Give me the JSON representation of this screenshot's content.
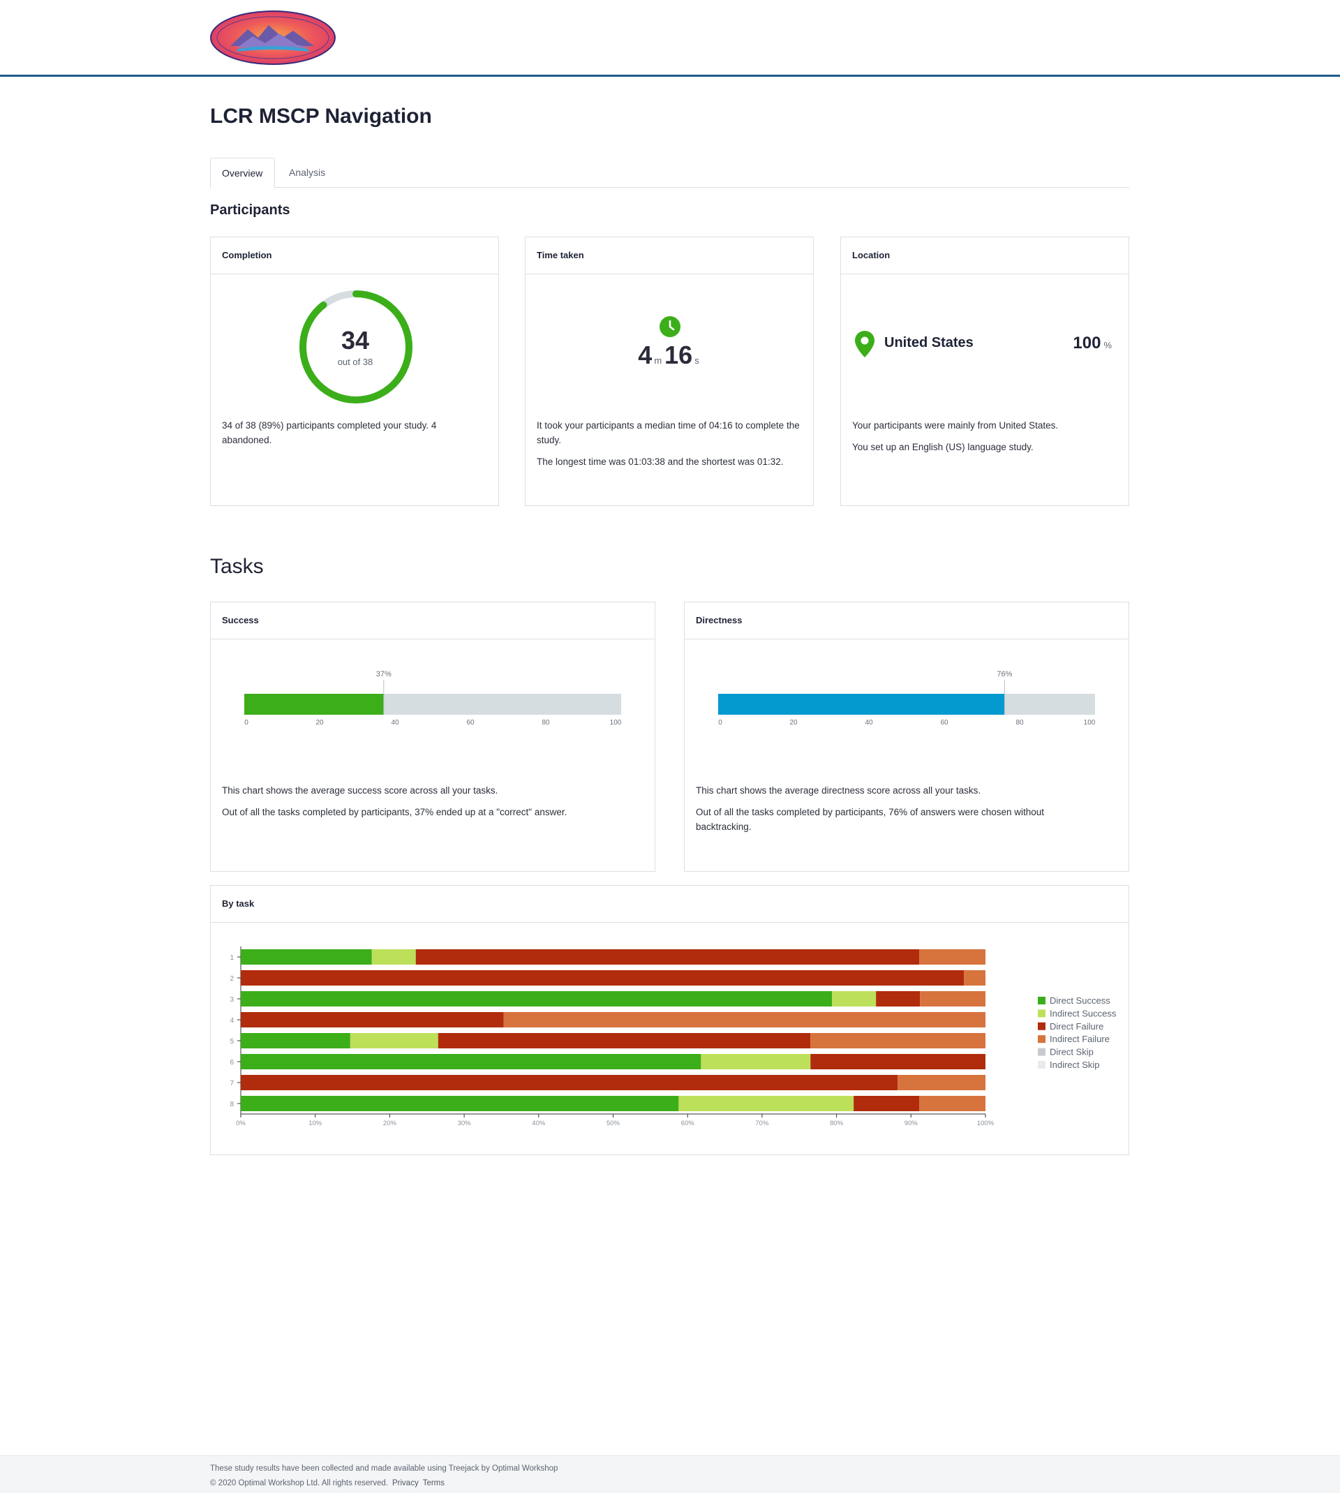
{
  "colors": {
    "accent_blue": "#1f5c8a",
    "success_green": "#3cae1a",
    "indirect_success": "#bde05a",
    "direct_failure": "#b02c0c",
    "indirect_failure": "#d7733d",
    "direct_skip": "#c7cbd0",
    "indirect_skip": "#e8eaec",
    "directness_blue": "#049ad0",
    "track_gray": "#d5dde0"
  },
  "header": {
    "logo_icon": "lcr-mscp-logo-icon"
  },
  "page": {
    "title": "LCR MSCP Navigation"
  },
  "tabs": [
    {
      "label": "Overview",
      "active": true
    },
    {
      "label": "Analysis",
      "active": false
    }
  ],
  "participants": {
    "title": "Participants",
    "completion": {
      "header": "Completion",
      "value": "34",
      "sub": "out of 38",
      "completed": 34,
      "total": 38,
      "text": "34 of 38 (89%) participants completed your study. 4 abandoned."
    },
    "time": {
      "header": "Time taken",
      "minutes": "4",
      "minutes_unit": "m",
      "seconds": "16",
      "seconds_unit": "s",
      "text1": "It took your participants a median time of 04:16 to complete the study.",
      "text2": "The longest time was 01:03:38 and the shortest was 01:32."
    },
    "location": {
      "header": "Location",
      "country": "United States",
      "percent": "100",
      "percent_unit": "%",
      "text1": "Your participants were mainly from United States.",
      "text2": "You set up an English (US) language study."
    }
  },
  "tasks": {
    "title": "Tasks",
    "success": {
      "header": "Success",
      "value": 37,
      "label": "37%",
      "ticks": [
        "0",
        "20",
        "40",
        "60",
        "80",
        "100"
      ],
      "text1": "This chart shows the average success score across all your tasks.",
      "text2": "Out of all the tasks completed by participants, 37% ended up at a \"correct\" answer."
    },
    "directness": {
      "header": "Directness",
      "value": 76,
      "label": "76%",
      "ticks": [
        "0",
        "20",
        "40",
        "60",
        "80",
        "100"
      ],
      "text1": "This chart shows the average directness score across all your tasks.",
      "text2": "Out of all the tasks completed by participants, 76% of answers were chosen without backtracking."
    },
    "by_task_header": "By task"
  },
  "chart_data": {
    "type": "bar",
    "orientation": "horizontal",
    "stacked": true,
    "categories": [
      "1",
      "2",
      "3",
      "4",
      "5",
      "6",
      "7",
      "8"
    ],
    "x_ticks": [
      "0%",
      "10%",
      "20%",
      "30%",
      "40%",
      "50%",
      "60%",
      "70%",
      "80%",
      "90%",
      "100%"
    ],
    "xlim": [
      0,
      100
    ],
    "legend_position": "right",
    "series": [
      {
        "name": "Direct Success",
        "color": "#3cae1a",
        "values": [
          17.6,
          0,
          79.4,
          0,
          14.7,
          61.8,
          0,
          58.8
        ]
      },
      {
        "name": "Indirect Success",
        "color": "#bde05a",
        "values": [
          5.9,
          0,
          5.9,
          0,
          11.8,
          14.7,
          0,
          23.5
        ]
      },
      {
        "name": "Direct Failure",
        "color": "#b02c0c",
        "values": [
          67.6,
          97.1,
          5.9,
          35.3,
          50.0,
          23.5,
          88.2,
          8.8
        ]
      },
      {
        "name": "Indirect Failure",
        "color": "#d7733d",
        "values": [
          8.9,
          2.9,
          8.8,
          64.7,
          23.5,
          0,
          11.8,
          8.9
        ]
      },
      {
        "name": "Direct Skip",
        "color": "#c7cbd0",
        "values": [
          0,
          0,
          0,
          0,
          0,
          0,
          0,
          0
        ]
      },
      {
        "name": "Indirect Skip",
        "color": "#e8eaec",
        "values": [
          0,
          0,
          0,
          0,
          0,
          0,
          0,
          0
        ]
      }
    ]
  },
  "footer": {
    "line1": "These study results have been collected and made available using Treejack by Optimal Workshop",
    "line2": "© 2020 Optimal Workshop Ltd. All rights reserved.",
    "privacy": "Privacy",
    "terms": "Terms"
  }
}
